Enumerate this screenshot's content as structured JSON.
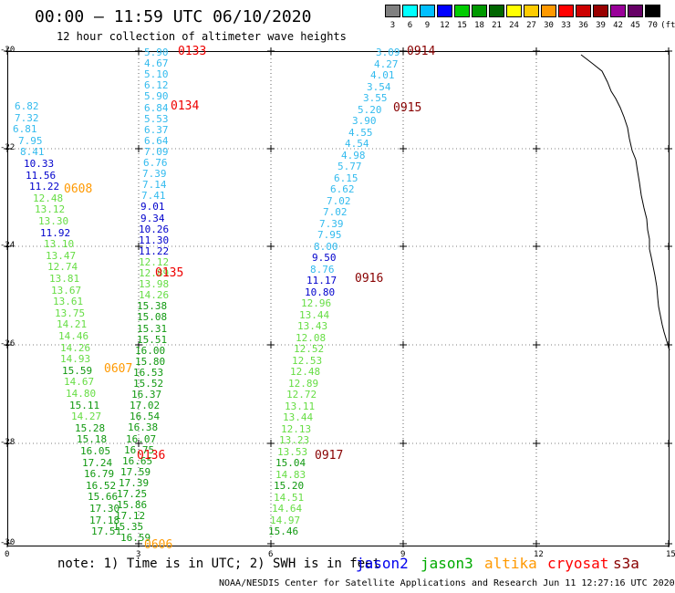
{
  "header": {
    "title": "00:00 – 11:59 UTC 06/10/2020",
    "subtitle": "12 hour collection of altimeter wave heights"
  },
  "legend": {
    "unit": "(ft)",
    "items": [
      {
        "label": "3",
        "color": "#808080"
      },
      {
        "label": "6",
        "color": "#00ffff"
      },
      {
        "label": "9",
        "color": "#00bfff"
      },
      {
        "label": "12",
        "color": "#0000ff"
      },
      {
        "label": "15",
        "color": "#00cc00"
      },
      {
        "label": "18",
        "color": "#009900"
      },
      {
        "label": "21",
        "color": "#006600"
      },
      {
        "label": "24",
        "color": "#ffff00"
      },
      {
        "label": "27",
        "color": "#ffcc00"
      },
      {
        "label": "30",
        "color": "#ff9900"
      },
      {
        "label": "33",
        "color": "#ff0000"
      },
      {
        "label": "36",
        "color": "#cc0000"
      },
      {
        "label": "39",
        "color": "#990000"
      },
      {
        "label": "42",
        "color": "#990099"
      },
      {
        "label": "45",
        "color": "#660066"
      },
      {
        "label": "70",
        "color": "#000000"
      }
    ]
  },
  "axes": {
    "lat_labels": [
      "-20",
      "-22",
      "-24",
      "-26",
      "-28",
      "-30"
    ],
    "lon_labels": [
      "0",
      "3",
      "6",
      "9",
      "12",
      "15"
    ]
  },
  "footer": {
    "note": "note:  1) Time is in UTC;  2) SWH is in feet",
    "satellites": [
      {
        "name": "jason2",
        "color": "#0000ee"
      },
      {
        "name": "jason3",
        "color": "#00aa00"
      },
      {
        "name": "altika",
        "color": "#ff9900"
      },
      {
        "name": "cryosat",
        "color": "#ff0000"
      },
      {
        "name": "s3a",
        "color": "#880000"
      }
    ],
    "credit": "NOAA/NESDIS Center for Satellite Applications and Research   Jun 11 12:27:16 UTC 2020"
  },
  "colors": {
    "light_blue": "#33bbee",
    "dark_blue": "#0000cc",
    "light_green": "#66dd44",
    "green": "#119911",
    "orange": "#ff9900",
    "red": "#ee0000",
    "dark_red": "#880000"
  },
  "tracks": [
    {
      "name": "track-0608",
      "tag": "0608",
      "tag_color": "orange",
      "points": [
        [
          "6.82",
          "light_blue"
        ],
        [
          "7.32",
          "light_blue"
        ],
        [
          "6.81",
          "light_blue"
        ],
        [
          "7.95",
          "light_blue"
        ],
        [
          "8.41",
          "light_blue"
        ],
        [
          "10.33",
          "dark_blue"
        ],
        [
          "11.56",
          "dark_blue"
        ],
        [
          "11.22",
          "dark_blue"
        ],
        [
          "12.48",
          "light_green"
        ],
        [
          "13.12",
          "light_green"
        ],
        [
          "13.30",
          "light_green"
        ],
        [
          "11.92",
          "dark_blue"
        ],
        [
          "13.10",
          "light_green"
        ],
        [
          "13.47",
          "light_green"
        ],
        [
          "12.74",
          "light_green"
        ],
        [
          "13.81",
          "light_green"
        ],
        [
          "13.67",
          "light_green"
        ],
        [
          "13.61",
          "light_green"
        ],
        [
          "13.75",
          "light_green"
        ],
        [
          "14.21",
          "light_green"
        ],
        [
          "14.46",
          "light_green"
        ],
        [
          "14.26",
          "light_green"
        ],
        [
          "14.93",
          "light_green"
        ],
        [
          "15.59",
          "green"
        ],
        [
          "14.67",
          "light_green"
        ],
        [
          "14.80",
          "light_green"
        ],
        [
          "15.11",
          "green"
        ],
        [
          "14.27",
          "light_green"
        ],
        [
          "15.28",
          "green"
        ],
        [
          "15.18",
          "green"
        ],
        [
          "16.05",
          "green"
        ],
        [
          "17.24",
          "green"
        ],
        [
          "16.79",
          "green"
        ],
        [
          "16.52",
          "green"
        ],
        [
          "15.66",
          "green"
        ],
        [
          "17.30",
          "green"
        ],
        [
          "17.18",
          "green"
        ],
        [
          "17.51",
          "green"
        ]
      ]
    },
    {
      "name": "track-0133",
      "tag": "0133",
      "tag_color": "red",
      "points": [
        [
          "5.90",
          "light_blue"
        ],
        [
          "4.67",
          "light_blue"
        ],
        [
          "5.10",
          "light_blue"
        ],
        [
          "6.12",
          "light_blue"
        ],
        [
          "5.90",
          "light_blue"
        ],
        [
          "6.84",
          "light_blue"
        ],
        [
          "5.53",
          "light_blue"
        ],
        [
          "6.37",
          "light_blue"
        ],
        [
          "6.64",
          "light_blue"
        ],
        [
          "7.09",
          "light_blue"
        ],
        [
          "6.76",
          "light_blue"
        ],
        [
          "7.39",
          "light_blue"
        ],
        [
          "7.14",
          "light_blue"
        ],
        [
          "7.41",
          "light_blue"
        ],
        [
          "9.01",
          "dark_blue"
        ],
        [
          "9.34",
          "dark_blue"
        ],
        [
          "10.26",
          "dark_blue"
        ],
        [
          "11.30",
          "dark_blue"
        ],
        [
          "11.22",
          "dark_blue"
        ],
        [
          "12.12",
          "light_green"
        ],
        [
          "12.89",
          "light_green"
        ],
        [
          "13.98",
          "light_green"
        ],
        [
          "14.26",
          "light_green"
        ],
        [
          "15.38",
          "green"
        ],
        [
          "15.08",
          "green"
        ],
        [
          "15.31",
          "green"
        ],
        [
          "15.51",
          "green"
        ],
        [
          "16.00",
          "green"
        ],
        [
          "15.80",
          "green"
        ],
        [
          "16.53",
          "green"
        ],
        [
          "15.52",
          "green"
        ],
        [
          "16.37",
          "green"
        ],
        [
          "17.02",
          "green"
        ],
        [
          "16.54",
          "green"
        ],
        [
          "16.38",
          "green"
        ],
        [
          "16.07",
          "green"
        ],
        [
          "16.75",
          "green"
        ],
        [
          "16.65",
          "green"
        ],
        [
          "17.59",
          "green"
        ],
        [
          "17.39",
          "green"
        ],
        [
          "17.25",
          "green"
        ],
        [
          "15.86",
          "green"
        ],
        [
          "17.12",
          "green"
        ],
        [
          "15.35",
          "green"
        ],
        [
          "16.59",
          "green"
        ]
      ]
    },
    {
      "name": "track-0914",
      "tag": "0914",
      "tag_color": "dark_red",
      "points": [
        [
          "3.09",
          "light_blue"
        ],
        [
          "4.27",
          "light_blue"
        ],
        [
          "4.01",
          "light_blue"
        ],
        [
          "3.54",
          "light_blue"
        ],
        [
          "3.55",
          "light_blue"
        ],
        [
          "5.20",
          "light_blue"
        ],
        [
          "3.90",
          "light_blue"
        ],
        [
          "4.55",
          "light_blue"
        ],
        [
          "4.54",
          "light_blue"
        ],
        [
          "4.98",
          "light_blue"
        ],
        [
          "5.77",
          "light_blue"
        ],
        [
          "6.15",
          "light_blue"
        ],
        [
          "6.62",
          "light_blue"
        ],
        [
          "7.02",
          "light_blue"
        ],
        [
          "7.02",
          "light_blue"
        ],
        [
          "7.39",
          "light_blue"
        ],
        [
          "7.95",
          "light_blue"
        ],
        [
          "8.00",
          "light_blue"
        ],
        [
          "9.50",
          "dark_blue"
        ],
        [
          "8.76",
          "light_blue"
        ],
        [
          "11.17",
          "dark_blue"
        ],
        [
          "10.80",
          "dark_blue"
        ],
        [
          "12.96",
          "light_green"
        ],
        [
          "13.44",
          "light_green"
        ],
        [
          "13.43",
          "light_green"
        ],
        [
          "12.08",
          "light_green"
        ],
        [
          "12.52",
          "light_green"
        ],
        [
          "12.53",
          "light_green"
        ],
        [
          "12.48",
          "light_green"
        ],
        [
          "12.89",
          "light_green"
        ],
        [
          "12.72",
          "light_green"
        ],
        [
          "13.11",
          "light_green"
        ],
        [
          "13.44",
          "light_green"
        ],
        [
          "12.13",
          "light_green"
        ],
        [
          "13.23",
          "light_green"
        ],
        [
          "13.53",
          "light_green"
        ],
        [
          "15.04",
          "green"
        ],
        [
          "14.83",
          "light_green"
        ],
        [
          "15.20",
          "green"
        ],
        [
          "14.51",
          "light_green"
        ],
        [
          "14.64",
          "light_green"
        ],
        [
          "14.97",
          "light_green"
        ],
        [
          "15.46",
          "green"
        ]
      ]
    }
  ],
  "pass_tags": [
    {
      "text": "0134",
      "color": "red"
    },
    {
      "text": "0135",
      "color": "red"
    },
    {
      "text": "0136",
      "color": "red"
    },
    {
      "text": "0607",
      "color": "orange"
    },
    {
      "text": "0606",
      "color": "orange"
    },
    {
      "text": "0915",
      "color": "dark_red"
    },
    {
      "text": "0916",
      "color": "dark_red"
    },
    {
      "text": "0917",
      "color": "dark_red"
    }
  ]
}
